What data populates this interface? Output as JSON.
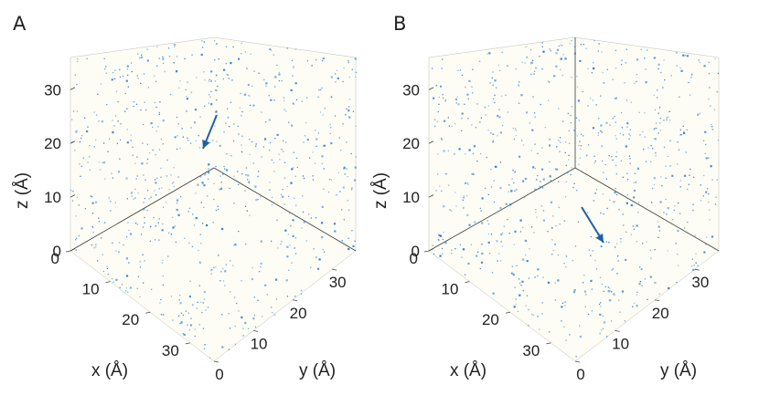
{
  "chart_data": [
    {
      "type": "scatter",
      "panel_label": "A",
      "projection": "3d",
      "view": "top-front-corner",
      "xlabel": "x (Å)",
      "ylabel": "y (Å)",
      "zlabel": "z (Å)",
      "xlim": [
        0,
        36
      ],
      "ylim": [
        0,
        36
      ],
      "zlim": [
        0,
        36
      ],
      "x_ticks": [
        "0",
        "10",
        "20",
        "30"
      ],
      "y_ticks": [
        "0",
        "10",
        "20",
        "30"
      ],
      "z_ticks": [
        "0",
        "10",
        "20",
        "30"
      ],
      "grid": false,
      "point_color": "#2f7fd0",
      "arrow_color": "#1f5fa8",
      "arrow": {
        "from": [
          6,
          2,
          34
        ],
        "to": [
          10,
          4,
          30
        ]
      },
      "points_per_face": 260,
      "seed": 11
    },
    {
      "type": "scatter",
      "panel_label": "B",
      "projection": "3d",
      "view": "back-corner",
      "xlabel": "x (Å)",
      "ylabel": "y (Å)",
      "zlabel": "z (Å)",
      "xlim": [
        0,
        36
      ],
      "ylim": [
        0,
        36
      ],
      "zlim": [
        0,
        36
      ],
      "x_ticks": [
        "0",
        "10",
        "20",
        "30"
      ],
      "y_ticks": [
        "0",
        "10",
        "20",
        "30"
      ],
      "z_ticks": [
        "0",
        "10",
        "20",
        "30"
      ],
      "grid": false,
      "point_color": "#2f7fd0",
      "arrow_color": "#1f5fa8",
      "arrow": {
        "from": [
          14,
          12,
          0
        ],
        "to": [
          20,
          18,
          0
        ]
      },
      "points_per_face": 260,
      "seed": 29
    }
  ]
}
